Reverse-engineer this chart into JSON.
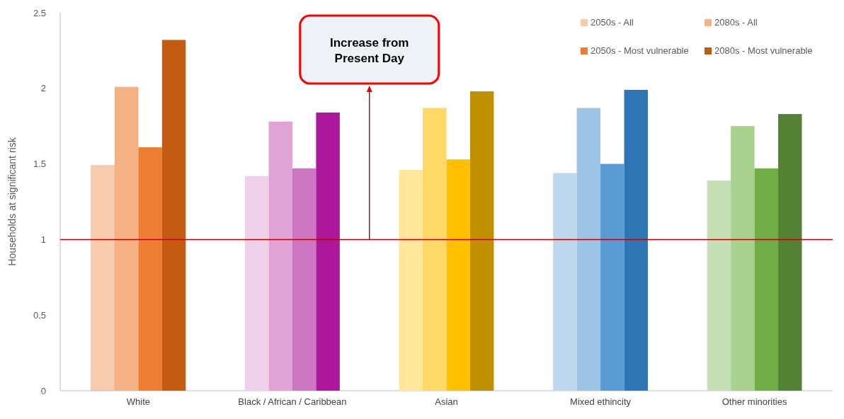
{
  "chart_data": {
    "type": "bar",
    "ylabel": "Households at significant risk",
    "categories": [
      "White",
      "Black / African / Caribbean",
      "Asian",
      "Mixed ethincity",
      "Other minorities"
    ],
    "series": [
      {
        "name": "2050s - All",
        "color": "#f8cbad",
        "colors": [
          "#f8cbad",
          "#efd0ea",
          "#ffe699",
          "#bdd7ee",
          "#c5e0b4"
        ],
        "values": [
          1.49,
          1.42,
          1.46,
          1.44,
          1.39
        ]
      },
      {
        "name": "2080s - All",
        "color": "#f4b183",
        "colors": [
          "#f4b183",
          "#dfa3d6",
          "#ffd966",
          "#9dc3e6",
          "#a9d18e"
        ],
        "values": [
          2.01,
          1.78,
          1.87,
          1.87,
          1.75
        ]
      },
      {
        "name": "2050s - Most vulnerable",
        "color": "#ed7d31",
        "colors": [
          "#ed7d31",
          "#cc76c2",
          "#ffc000",
          "#5b9bd5",
          "#70ad47"
        ],
        "values": [
          1.61,
          1.47,
          1.53,
          1.5,
          1.47
        ]
      },
      {
        "name": "2080s - Most vulnerable",
        "color": "#c55a11",
        "colors": [
          "#c55a11",
          "#ad179e",
          "#bf9000",
          "#2e75b6",
          "#548235"
        ],
        "values": [
          2.32,
          1.84,
          1.98,
          1.99,
          1.83
        ]
      }
    ],
    "ylim": [
      0,
      2.5
    ],
    "yticks": [
      0,
      0.5,
      1,
      1.5,
      2,
      2.5
    ],
    "grid": false,
    "legend": "top right",
    "ref_lines": [
      {
        "axis": "y",
        "value": 1,
        "color": "#c00000"
      }
    ],
    "annotations": [
      "Increase from Present Day"
    ]
  }
}
